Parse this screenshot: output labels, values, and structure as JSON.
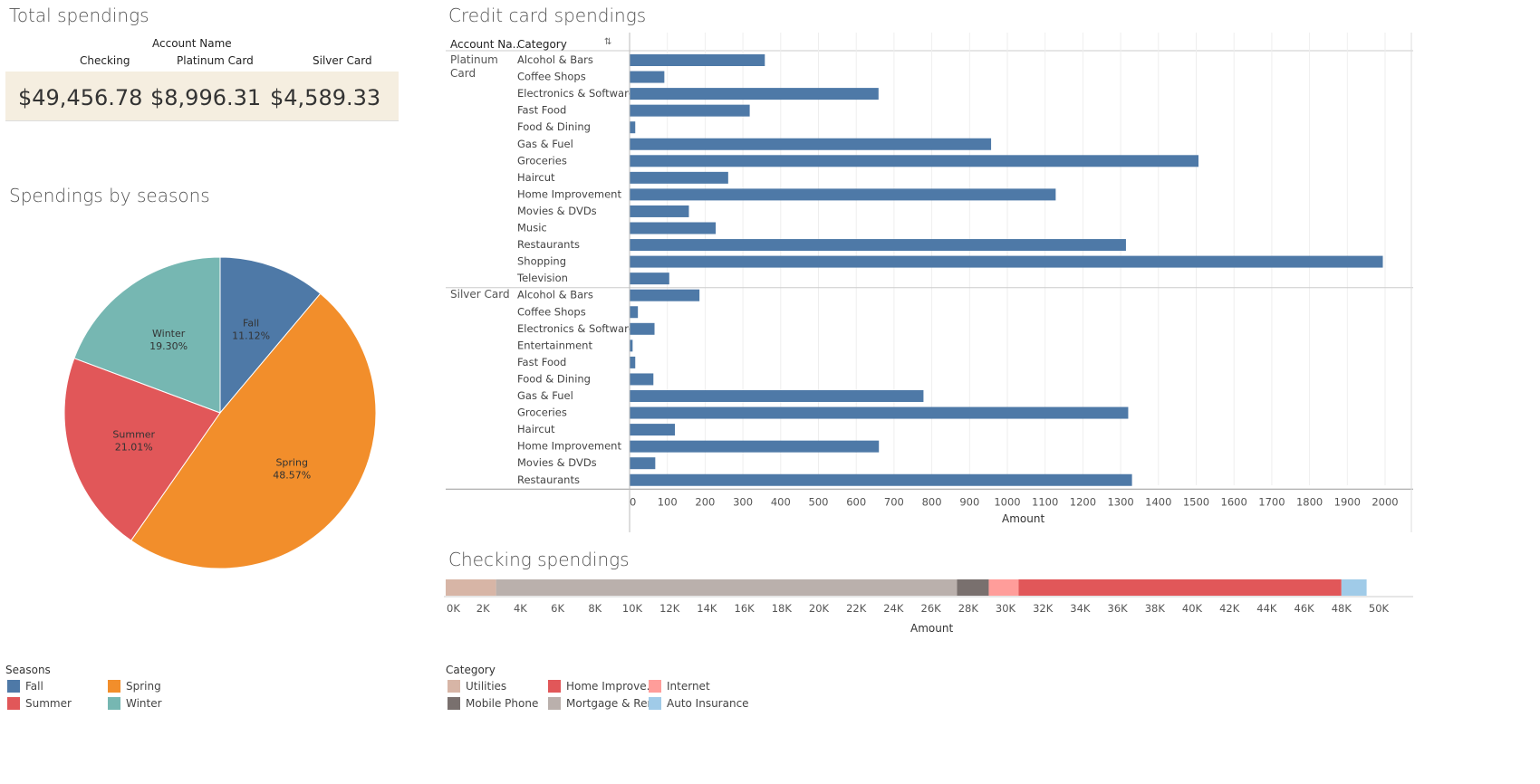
{
  "total": {
    "title": "Total spendings",
    "header": "Account Name",
    "columns": [
      {
        "name": "Checking",
        "value": "$49,456.78"
      },
      {
        "name": "Platinum Card",
        "value": "$8,996.31"
      },
      {
        "name": "Silver Card",
        "value": "$4,589.33"
      }
    ]
  },
  "seasons": {
    "title": "Spendings by seasons",
    "legend_title": "Seasons",
    "legend": [
      {
        "label": "Fall",
        "color": "#4e79a7"
      },
      {
        "label": "Summer",
        "color": "#e15759"
      },
      {
        "label": "Spring",
        "color": "#f28e2b"
      },
      {
        "label": "Winter",
        "color": "#76b7b2"
      }
    ]
  },
  "credit": {
    "title": "Credit card spendings",
    "col_account": "Account Na..",
    "col_category": "Category",
    "sort_icon": "sort-descending-icon",
    "xlabel": "Amount",
    "group1_label_line1": "Platinum",
    "group1_label_line2": "Card",
    "group2_label": "Silver Card"
  },
  "checking": {
    "title": "Checking spendings",
    "xlabel": "Amount",
    "legend_title": "Category",
    "legend": [
      {
        "label": "Utilities",
        "color": "#d7b5a6"
      },
      {
        "label": "Mobile Phone",
        "color": "#79706e"
      },
      {
        "label": "Home Improve..",
        "color": "#e15759"
      },
      {
        "label": "Mortgage & Rent",
        "color": "#bab0ac"
      },
      {
        "label": "Internet",
        "color": "#ff9d9a"
      },
      {
        "label": "Auto Insurance",
        "color": "#a0cbe8"
      }
    ]
  },
  "chart_data": [
    {
      "type": "pie",
      "title": "Spendings by seasons",
      "categories": [
        "Fall",
        "Spring",
        "Summer",
        "Winter"
      ],
      "values": [
        11.12,
        48.57,
        21.01,
        19.3
      ],
      "labels": [
        "11.12%",
        "48.57%",
        "21.01%",
        "19.30%"
      ],
      "colors": [
        "#4e79a7",
        "#f28e2b",
        "#e15759",
        "#76b7b2"
      ],
      "legend": "bottom-left"
    },
    {
      "type": "bar",
      "orientation": "horizontal",
      "title": "Credit card spendings",
      "xlabel": "Amount",
      "xlim": [
        0,
        2000
      ],
      "xticks": [
        0,
        100,
        200,
        300,
        400,
        500,
        600,
        700,
        800,
        900,
        1000,
        1100,
        1200,
        1300,
        1400,
        1500,
        1600,
        1700,
        1800,
        1900,
        2000
      ],
      "color": "#4e79a7",
      "groups": [
        {
          "name": "Platinum Card",
          "categories": [
            "Alcohol & Bars",
            "Coffee Shops",
            "Electronics & Software",
            "Fast Food",
            "Food & Dining",
            "Gas & Fuel",
            "Groceries",
            "Haircut",
            "Home Improvement",
            "Movies & DVDs",
            "Music",
            "Restaurants",
            "Shopping",
            "Television"
          ],
          "values": [
            358,
            92,
            659,
            318,
            15,
            957,
            1506,
            261,
            1128,
            157,
            228,
            1314,
            1994,
            105
          ]
        },
        {
          "name": "Silver Card",
          "categories": [
            "Alcohol & Bars",
            "Coffee Shops",
            "Electronics & Software",
            "Entertainment",
            "Fast Food",
            "Food & Dining",
            "Gas & Fuel",
            "Groceries",
            "Haircut",
            "Home Improvement",
            "Movies & DVDs",
            "Restaurants"
          ],
          "values": [
            185,
            22,
            66,
            8,
            15,
            63,
            778,
            1320,
            120,
            660,
            68,
            1330
          ]
        }
      ]
    },
    {
      "type": "bar",
      "orientation": "horizontal",
      "stacked": true,
      "title": "Checking spendings",
      "xlabel": "Amount",
      "xlim": [
        0,
        50000
      ],
      "xticks": [
        "0K",
        "2K",
        "4K",
        "6K",
        "8K",
        "10K",
        "12K",
        "14K",
        "16K",
        "18K",
        "20K",
        "22K",
        "24K",
        "26K",
        "28K",
        "30K",
        "32K",
        "34K",
        "36K",
        "38K",
        "40K",
        "42K",
        "44K",
        "46K",
        "48K",
        "50K"
      ],
      "series": [
        {
          "name": "Utilities",
          "value": 2700,
          "color": "#d7b5a6"
        },
        {
          "name": "Mortgage & Rent",
          "value": 24700,
          "color": "#bab0ac"
        },
        {
          "name": "Mobile Phone",
          "value": 1700,
          "color": "#79706e"
        },
        {
          "name": "Internet",
          "value": 1600,
          "color": "#ff9d9a"
        },
        {
          "name": "Home Improve..",
          "value": 17300,
          "color": "#e15759"
        },
        {
          "name": "Auto Insurance",
          "value": 1350,
          "color": "#a0cbe8"
        }
      ],
      "legend": "bottom"
    }
  ]
}
